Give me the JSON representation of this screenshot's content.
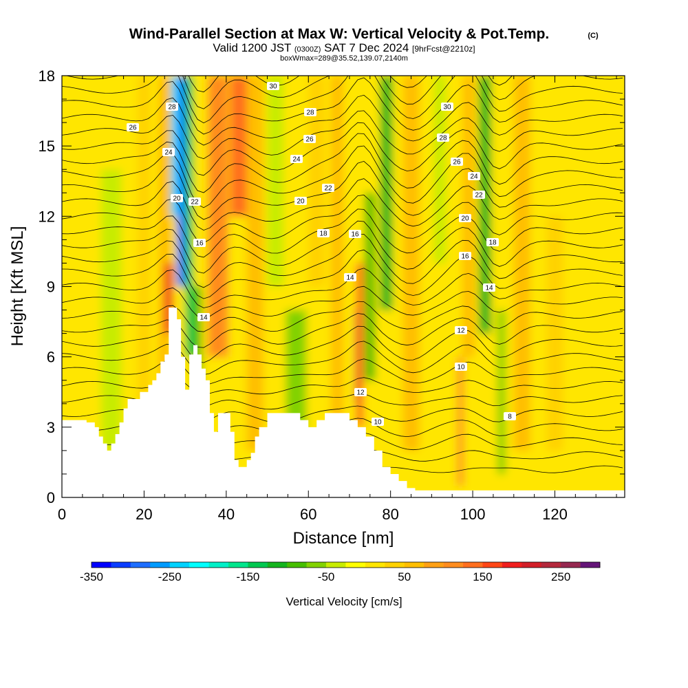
{
  "header": {
    "title": "Wind-Parallel Section at Max W: Vertical Velocity & Pot.Temp.",
    "copyright": "(C)",
    "valid_prefix": "Valid 1200 JST",
    "valid_utc": "(0300Z)",
    "valid_date": "SAT 7 Dec 2024",
    "forecast": "[9hrFcst@2210z]",
    "box_info": "boxWmax=289@35.52,139.07,2140m"
  },
  "chart_data": {
    "type": "heatmap",
    "xlabel": "Distance [nm]",
    "ylabel": "Height [Kft MSL]",
    "xlim": [
      0,
      137
    ],
    "ylim": [
      0,
      18
    ],
    "x_ticks": [
      "0",
      "20",
      "40",
      "60",
      "80",
      "100",
      "120"
    ],
    "x_tick_values": [
      0,
      20,
      40,
      60,
      80,
      100,
      120
    ],
    "y_ticks": [
      "0",
      "3",
      "6",
      "9",
      "12",
      "15",
      "18"
    ],
    "y_tick_values": [
      0,
      3,
      6,
      9,
      12,
      15,
      18
    ],
    "colorbar": {
      "label": "Vertical Velocity [cm/s]",
      "min": -350,
      "max": 300,
      "step": 25,
      "tick_labels": [
        "-350",
        "-250",
        "-150",
        "-50",
        "50",
        "150",
        "250"
      ],
      "tick_values": [
        -350,
        -250,
        -150,
        -50,
        50,
        150,
        250
      ],
      "colors": [
        "#0000ff",
        "#0a3dff",
        "#1e6eff",
        "#009bff",
        "#00d2ff",
        "#00ffff",
        "#00f0c8",
        "#00e68c",
        "#00c850",
        "#14b41e",
        "#46be00",
        "#82d200",
        "#c8ec00",
        "#ffff00",
        "#ffe600",
        "#ffd200",
        "#ffbe00",
        "#ffa014",
        "#ff8c1e",
        "#ff6e1e",
        "#ff4616",
        "#f01e1e",
        "#d21e28",
        "#b4283c",
        "#962850",
        "#641478"
      ]
    },
    "theta_contour_labels": [
      "30",
      "28",
      "26",
      "24",
      "22",
      "20",
      "18",
      "16",
      "14",
      "12",
      "10",
      "8"
    ],
    "terrain_profile": {
      "x": [
        0,
        2,
        4,
        6,
        8,
        9,
        10,
        11,
        12,
        13,
        14,
        15,
        16,
        17,
        18,
        19,
        20,
        21,
        22,
        23,
        24,
        25,
        26,
        27,
        28,
        29,
        30,
        31,
        32,
        33,
        34,
        35,
        36,
        37,
        38,
        39,
        40,
        41,
        42,
        43,
        44,
        45,
        46,
        47,
        48,
        50,
        52,
        54,
        56,
        58,
        60,
        62,
        64,
        66,
        68,
        70,
        72,
        74,
        76,
        78,
        80,
        82,
        84,
        86,
        88,
        90,
        92,
        94,
        96,
        100,
        110,
        120,
        130,
        137
      ],
      "height_kft": [
        3.3,
        3.3,
        3.3,
        3.2,
        3.0,
        2.6,
        2.3,
        2.0,
        2.3,
        2.7,
        3.2,
        3.8,
        4.2,
        4.2,
        4.2,
        4.5,
        4.5,
        4.8,
        5.0,
        5.3,
        5.8,
        6.1,
        8.1,
        8.1,
        7.6,
        6.0,
        4.6,
        6.1,
        6.5,
        6.1,
        5.5,
        5.0,
        3.6,
        2.8,
        3.6,
        3.6,
        3.6,
        2.8,
        1.6,
        1.3,
        1.3,
        1.6,
        1.9,
        2.6,
        3.0,
        3.6,
        3.6,
        3.6,
        3.6,
        3.3,
        3.0,
        3.3,
        3.6,
        3.6,
        3.6,
        3.3,
        3.0,
        2.6,
        2.0,
        1.3,
        1.0,
        0.7,
        0.4,
        0.3,
        0.3,
        0.3,
        0.3,
        0.3,
        0.3,
        0.3,
        0.3,
        0.3,
        0.3,
        0.3
      ]
    }
  }
}
